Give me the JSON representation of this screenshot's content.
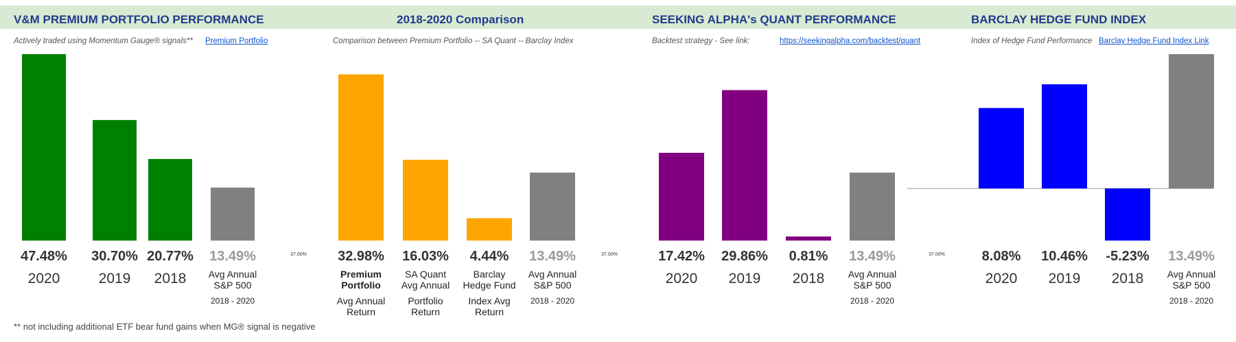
{
  "footnote": "** not including additional ETF bear fund gains when MG® signal is negative",
  "panels": [
    {
      "title": "V&M PREMIUM PORTFOLIO PERFORMANCE",
      "subtitle": "Actively traded using Momentum Gauge® signals**",
      "link_text": "Premium Portfolio"
    },
    {
      "title": "2018-2020 Comparison",
      "subtitle": "Comparison between Premium Portfolio -- SA Quant -- Barclay Index",
      "link_text": ""
    },
    {
      "title": "SEEKING ALPHA's QUANT PERFORMANCE",
      "subtitle": "Backtest strategy - See link:",
      "link_text": "https://seekingalpha.com/backtest/quant"
    },
    {
      "title": "BARCLAY HEDGE FUND INDEX",
      "subtitle": "Index of Hedge Fund Performance",
      "link_text": "Barclay Hedge Fund Index Link"
    }
  ],
  "chart_data": [
    {
      "type": "bar",
      "ylim": [
        0,
        47.48
      ],
      "small_label": "",
      "bars": [
        {
          "value": 47.48,
          "value_label": "47.48%",
          "color": "#008000",
          "value_gray": false,
          "label": [
            "2020"
          ],
          "label_style": "year"
        },
        {
          "value": 30.7,
          "value_label": "30.70%",
          "color": "#008000",
          "value_gray": false,
          "label": [
            "2019"
          ],
          "label_style": "year"
        },
        {
          "value": 20.77,
          "value_label": "20.77%",
          "color": "#008000",
          "value_gray": false,
          "label": [
            "2018"
          ],
          "label_style": "year"
        },
        {
          "value": 13.49,
          "value_label": "13.49%",
          "color": "#808080",
          "value_gray": true,
          "label": [
            "Avg Annual",
            "S&P 500"
          ],
          "label_style": "text",
          "sublabel": "2018 - 2020"
        }
      ]
    },
    {
      "type": "bar",
      "ylim": [
        0,
        37.0
      ],
      "small_label": "37.00%",
      "bars": [
        {
          "value": 32.98,
          "value_label": "32.98%",
          "color": "#ffa500",
          "value_gray": false,
          "label": [
            "Premium",
            "Portfolio",
            "Avg Annual",
            "Return"
          ],
          "label_style": "multi",
          "bold_lines": 2
        },
        {
          "value": 16.03,
          "value_label": "16.03%",
          "color": "#ffa500",
          "value_gray": false,
          "label": [
            "SA Quant",
            "Avg Annual",
            "Portfolio",
            "Return"
          ],
          "label_style": "multi",
          "bold_lines": 0
        },
        {
          "value": 4.44,
          "value_label": "4.44%",
          "color": "#ffa500",
          "value_gray": false,
          "label": [
            "Barclay",
            "Hedge Fund",
            "Index Avg",
            "Return"
          ],
          "label_style": "multi",
          "bold_lines": 0
        },
        {
          "value": 13.49,
          "value_label": "13.49%",
          "color": "#808080",
          "value_gray": true,
          "label": [
            "Avg Annual",
            "S&P 500"
          ],
          "label_style": "text",
          "sublabel": "2018 - 2020"
        }
      ]
    },
    {
      "type": "bar",
      "ylim": [
        0,
        37.0
      ],
      "small_label": "37.00%",
      "bars": [
        {
          "value": 17.42,
          "value_label": "17.42%",
          "color": "#800080",
          "value_gray": false,
          "label": [
            "2020"
          ],
          "label_style": "year"
        },
        {
          "value": 29.86,
          "value_label": "29.86%",
          "color": "#800080",
          "value_gray": false,
          "label": [
            "2019"
          ],
          "label_style": "year"
        },
        {
          "value": 0.81,
          "value_label": "0.81%",
          "color": "#800080",
          "value_gray": false,
          "label": [
            "2018"
          ],
          "label_style": "year"
        },
        {
          "value": 13.49,
          "value_label": "13.49%",
          "color": "#808080",
          "value_gray": true,
          "label": [
            "Avg Annual",
            "S&P 500"
          ],
          "label_style": "text",
          "sublabel": "2018 - 2020"
        }
      ]
    },
    {
      "type": "bar",
      "ylim": [
        -5.23,
        13.49
      ],
      "small_label": "37.00%",
      "bars": [
        {
          "value": 8.08,
          "value_label": "8.08%",
          "color": "#0000ff",
          "value_gray": false,
          "label": [
            "2020"
          ],
          "label_style": "year"
        },
        {
          "value": 10.46,
          "value_label": "10.46%",
          "color": "#0000ff",
          "value_gray": false,
          "label": [
            "2019"
          ],
          "label_style": "year"
        },
        {
          "value": -5.23,
          "value_label": "-5.23%",
          "color": "#0000ff",
          "value_gray": false,
          "label": [
            "2018"
          ],
          "label_style": "year"
        },
        {
          "value": 13.49,
          "value_label": "13.49%",
          "color": "#808080",
          "value_gray": true,
          "label": [
            "Avg Annual",
            "S&P 500"
          ],
          "label_style": "text",
          "sublabel": "2018 - 2020"
        }
      ]
    }
  ]
}
